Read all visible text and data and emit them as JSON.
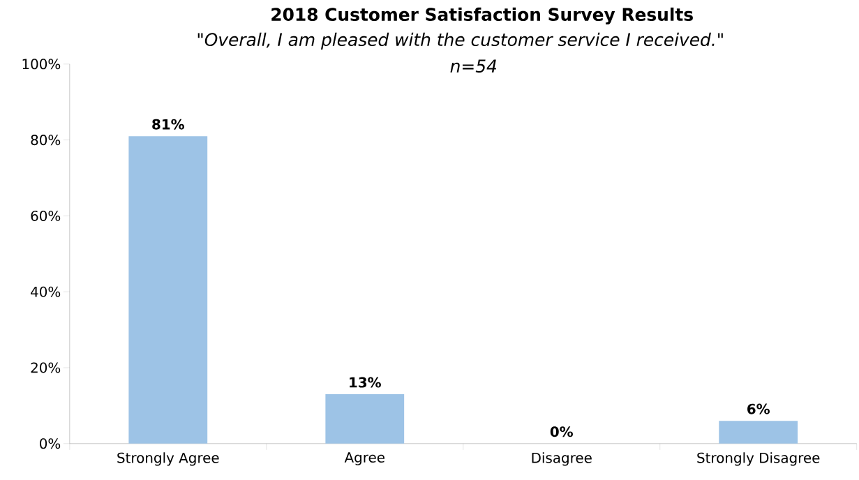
{
  "chart_data": {
    "type": "bar",
    "title": "2018 Customer Satisfaction Survey Results",
    "subtitle": "\"Overall, I am pleased with the customer service I received.\"",
    "annotations": [
      "n=54"
    ],
    "categories": [
      "Strongly Agree",
      "Agree",
      "Disagree",
      "Strongly Disagree"
    ],
    "values": [
      81,
      13,
      0,
      6
    ],
    "value_labels": [
      "81%",
      "13%",
      "0%",
      "6%"
    ],
    "color": "#9dc3e6",
    "ylim": [
      0,
      100
    ],
    "yticks": [
      {
        "value": 0,
        "label": "0%"
      },
      {
        "value": 20,
        "label": "20%"
      },
      {
        "value": 40,
        "label": "40%"
      },
      {
        "value": 60,
        "label": "60%"
      },
      {
        "value": 80,
        "label": "80%"
      },
      {
        "value": 100,
        "label": "100%"
      }
    ],
    "grid": false
  }
}
